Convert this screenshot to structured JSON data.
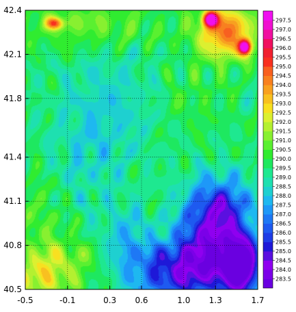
{
  "chart_data": {
    "type": "heatmap",
    "title": "",
    "xlabel": "",
    "ylabel": "",
    "xlim": [
      -0.5,
      1.7
    ],
    "ylim": [
      40.5,
      42.4
    ],
    "grid": true,
    "x_ticks": [
      "-0.5",
      "-0.1",
      "0.3",
      "0.6",
      "1.0",
      "1.3",
      "1.7"
    ],
    "y_ticks": [
      "40.5",
      "40.8",
      "41.1",
      "41.4",
      "41.8",
      "42.1",
      "42.4"
    ],
    "gridlines": {
      "x": [
        -0.1,
        0.3,
        0.6,
        1.0,
        1.3
      ],
      "y": [
        40.8,
        41.1,
        41.4,
        41.8,
        42.1
      ]
    },
    "colorbar": {
      "placement": "right",
      "labels": [
        "283.5",
        "284.0",
        "284.5",
        "285.0",
        "285.5",
        "286.0",
        "286.5",
        "287.0",
        "287.5",
        "288.0",
        "288.5",
        "289.0",
        "289.5",
        "290.0",
        "290.5",
        "291.0",
        "291.5",
        "292.0",
        "292.5",
        "293.0",
        "293.5",
        "294.0",
        "294.5",
        "295.0",
        "295.5",
        "296.0",
        "296.5",
        "297.0",
        "297.5"
      ],
      "colors": [
        "#7B00E8",
        "#8F00F0",
        "#5A10E0",
        "#1E18D8",
        "#1E3CE6",
        "#1E5AF0",
        "#1E78F5",
        "#1E98F8",
        "#1EB8F0",
        "#1ED0D0",
        "#1EE0B0",
        "#1EE890",
        "#1EE860",
        "#30EC30",
        "#5AF030",
        "#88F030",
        "#B4F030",
        "#DCF030",
        "#F8E020",
        "#F8C020",
        "#F8A020",
        "#F88020",
        "#F86020",
        "#F83020",
        "#F02030",
        "#F01060",
        "#F010A0",
        "#F010D0",
        "#F010F0"
      ],
      "bottom_color": "#6A00E0"
    },
    "field": {
      "value_range": [
        283.3,
        297.7
      ],
      "base_value": 289.6,
      "features": [
        {
          "x": 1.55,
          "y": 40.65,
          "value": 283.3,
          "spread_x": 0.17,
          "spread_y": 0.22
        },
        {
          "x": 1.25,
          "y": 40.75,
          "value": 284.6,
          "spread_x": 0.32,
          "spread_y": 0.3
        },
        {
          "x": 0.85,
          "y": 40.62,
          "value": 285.8,
          "spread_x": 0.38,
          "spread_y": 0.2
        },
        {
          "x": 1.35,
          "y": 41.08,
          "value": 286.2,
          "spread_x": 0.3,
          "spread_y": 0.2
        },
        {
          "x": 0.45,
          "y": 40.85,
          "value": 288.0,
          "spread_x": 0.22,
          "spread_y": 0.22
        },
        {
          "x": 0.3,
          "y": 41.75,
          "value": 288.4,
          "spread_x": 0.45,
          "spread_y": 0.4
        },
        {
          "x": 0.05,
          "y": 41.35,
          "value": 288.8,
          "spread_x": 0.35,
          "spread_y": 0.35
        },
        {
          "x": -0.4,
          "y": 40.58,
          "value": 292.0,
          "spread_x": 0.25,
          "spread_y": 0.16
        },
        {
          "x": -0.1,
          "y": 40.68,
          "value": 291.2,
          "spread_x": 0.28,
          "spread_y": 0.18
        },
        {
          "x": -0.35,
          "y": 41.0,
          "value": 290.6,
          "spread_x": 0.22,
          "spread_y": 0.3
        },
        {
          "x": 0.1,
          "y": 42.3,
          "value": 291.0,
          "spread_x": 0.7,
          "spread_y": 0.16
        },
        {
          "x": 1.4,
          "y": 42.25,
          "value": 294.5,
          "spread_x": 0.26,
          "spread_y": 0.18
        },
        {
          "x": 1.58,
          "y": 42.15,
          "value": 297.0,
          "spread_x": 0.06,
          "spread_y": 0.05
        },
        {
          "x": 1.25,
          "y": 42.34,
          "value": 296.5,
          "spread_x": 0.07,
          "spread_y": 0.05
        },
        {
          "x": -0.22,
          "y": 42.31,
          "value": 294.0,
          "spread_x": 0.08,
          "spread_y": 0.04
        },
        {
          "x": 1.05,
          "y": 41.8,
          "value": 290.2,
          "spread_x": 0.3,
          "spread_y": 0.22
        }
      ]
    }
  }
}
